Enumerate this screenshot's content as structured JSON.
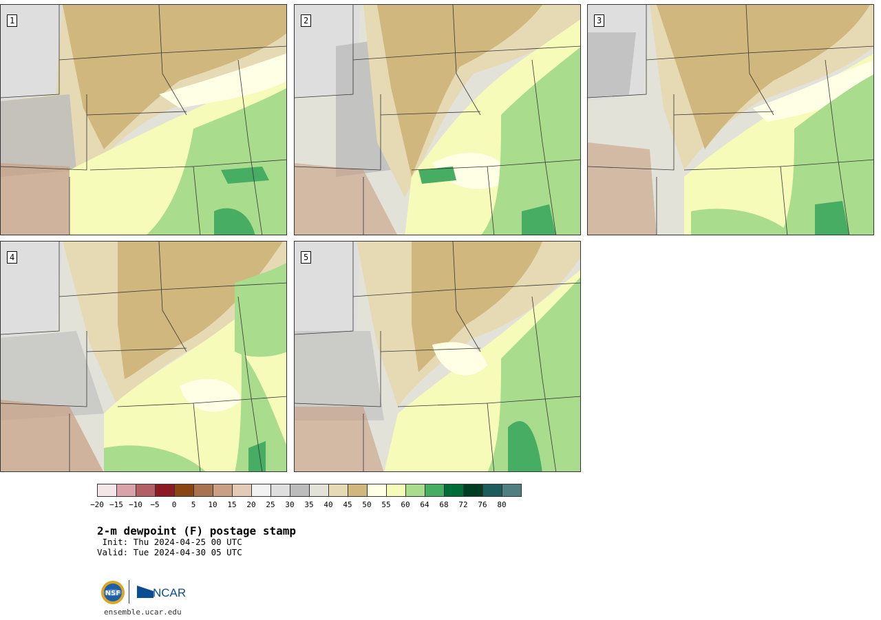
{
  "panels": [
    {
      "label": "1"
    },
    {
      "label": "2"
    },
    {
      "label": "3"
    },
    {
      "label": "4"
    },
    {
      "label": "5"
    }
  ],
  "colorbar": {
    "colors": [
      "#f4e6e6",
      "#d9a3a9",
      "#b35f66",
      "#8c1a24",
      "#8b4513",
      "#a97352",
      "#c9a084",
      "#e3cbb8",
      "#f2f2f2",
      "#dedede",
      "#bcbcbc",
      "#e2e2d8",
      "#e6dab5",
      "#cfb77e",
      "#ffffe6",
      "#f6fbb9",
      "#a9dc8d",
      "#46ad62",
      "#006d38",
      "#003d22",
      "#1d5c5c",
      "#4f7f80"
    ],
    "ticks": [
      "−20",
      "−15",
      "−10",
      "−5",
      "0",
      "5",
      "10",
      "15",
      "20",
      "25",
      "30",
      "35",
      "40",
      "45",
      "50",
      "55",
      "60",
      "64",
      "68",
      "72",
      "76",
      "80"
    ]
  },
  "title": "2-m dewpoint (F) postage stamp",
  "init": " Init: Thu 2024-04-25 00 UTC",
  "valid": "Valid: Tue 2024-04-30 05 UTC",
  "logos": {
    "nsf": "NSF",
    "ncar": "NCAR"
  },
  "site": "ensemble.ucar.edu"
}
